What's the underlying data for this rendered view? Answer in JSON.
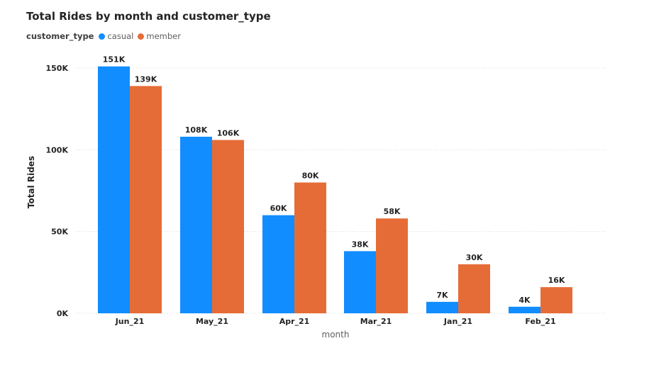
{
  "chart_data": {
    "type": "bar",
    "title": "Total Rides by month and customer_type",
    "legend_title": "customer_type",
    "legend_position": "top-left",
    "xlabel": "month",
    "ylabel": "Total Rides",
    "categories": [
      "Jun_21",
      "May_21",
      "Apr_21",
      "Mar_21",
      "Jan_21",
      "Feb_21"
    ],
    "series": [
      {
        "name": "casual",
        "color": "#118DFF",
        "values": [
          151000,
          108000,
          60000,
          38000,
          7000,
          4000
        ],
        "labels": [
          "151K",
          "108K",
          "60K",
          "38K",
          "7K",
          "4K"
        ]
      },
      {
        "name": "member",
        "color": "#E66C37",
        "values": [
          139000,
          106000,
          80000,
          58000,
          30000,
          16000
        ],
        "labels": [
          "139K",
          "106K",
          "80K",
          "58K",
          "30K",
          "16K"
        ]
      }
    ],
    "ylim": [
      0,
      150000
    ],
    "yticks": [
      0,
      50000,
      100000,
      150000
    ],
    "ytick_labels": [
      "0K",
      "50K",
      "100K",
      "150K"
    ],
    "grid": true
  }
}
